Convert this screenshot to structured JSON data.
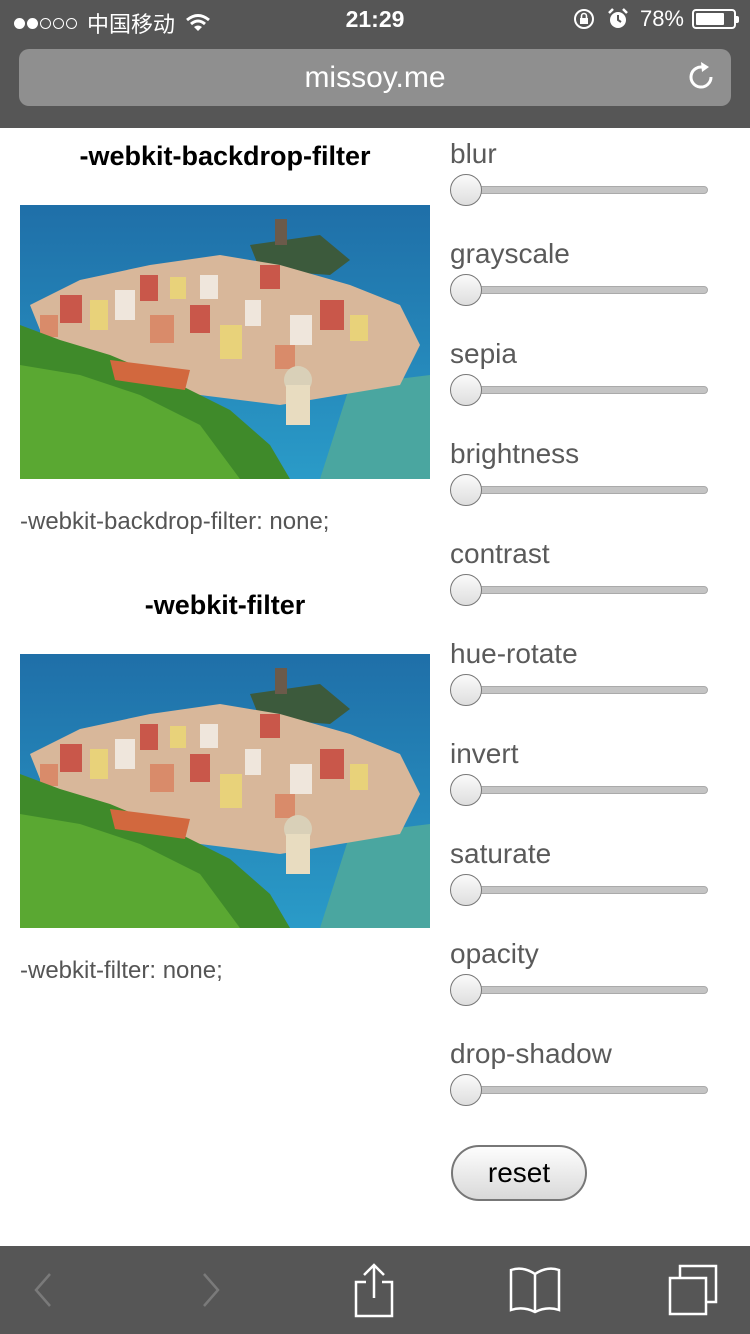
{
  "status_bar": {
    "carrier": "中国移动",
    "time": "21:29",
    "battery": "78%",
    "battery_level": 0.78
  },
  "browser": {
    "url": "missoy.me"
  },
  "demos": [
    {
      "heading": "-webkit-backdrop-filter",
      "caption": "-webkit-backdrop-filter: none;"
    },
    {
      "heading": "-webkit-filter",
      "caption": "-webkit-filter: none;"
    }
  ],
  "controls": [
    {
      "label": "blur",
      "value": 0
    },
    {
      "label": "grayscale",
      "value": 0
    },
    {
      "label": "sepia",
      "value": 0
    },
    {
      "label": "brightness",
      "value": 0
    },
    {
      "label": "contrast",
      "value": 0
    },
    {
      "label": "hue-rotate",
      "value": 0
    },
    {
      "label": "invert",
      "value": 0
    },
    {
      "label": "saturate",
      "value": 0
    },
    {
      "label": "opacity",
      "value": 0
    },
    {
      "label": "drop-shadow",
      "value": 0
    }
  ],
  "reset_label": "reset",
  "toolbar": [
    "back-icon",
    "forward-icon",
    "share-icon",
    "bookmarks-icon",
    "tabs-icon"
  ]
}
